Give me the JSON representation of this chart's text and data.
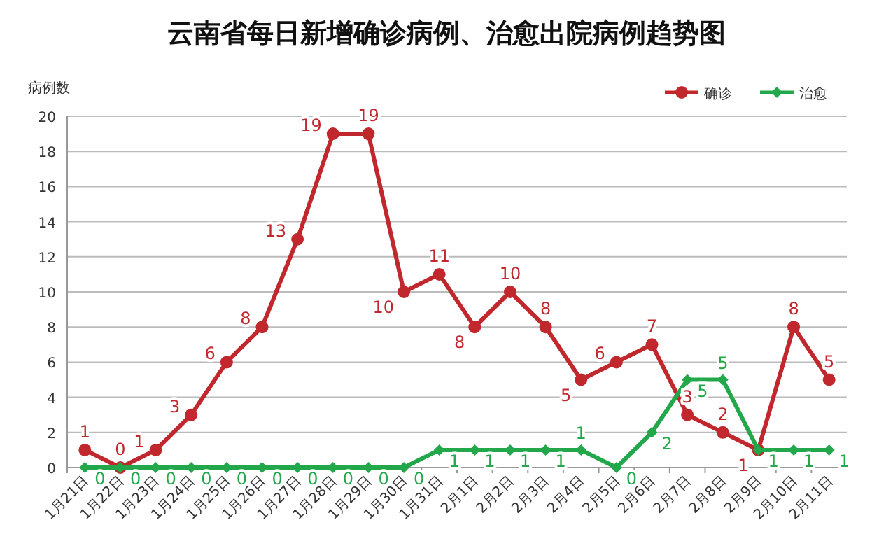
{
  "chart_data": {
    "type": "line",
    "title": "云南省每日新增确诊病例、治愈出院病例趋势图",
    "ylabel": "病例数",
    "categories": [
      "1月21日",
      "1月22日",
      "1月23日",
      "1月24日",
      "1月25日",
      "1月26日",
      "1月27日",
      "1月28日",
      "1月29日",
      "1月30日",
      "1月31日",
      "2月1日",
      "2月2日",
      "2月3日",
      "2月4日",
      "2月5日",
      "2月6日",
      "2月7日",
      "2月8日",
      "2月9日",
      "2月10日",
      "2月11日"
    ],
    "series": [
      {
        "name": "确诊",
        "color": "#c0282d",
        "marker": "circle",
        "values": [
          1,
          0,
          1,
          3,
          6,
          8,
          13,
          19,
          19,
          10,
          11,
          8,
          10,
          8,
          5,
          6,
          7,
          3,
          2,
          1,
          8,
          5
        ]
      },
      {
        "name": "治愈",
        "color": "#22a84a",
        "marker": "diamond",
        "values": [
          0,
          0,
          0,
          0,
          0,
          0,
          0,
          0,
          0,
          0,
          1,
          1,
          1,
          1,
          1,
          0,
          2,
          5,
          5,
          1,
          1,
          1
        ]
      }
    ],
    "ylim": [
      0,
      20
    ],
    "yticks": [
      0,
      2,
      4,
      6,
      8,
      10,
      12,
      14,
      16,
      18,
      20
    ],
    "grid": "y",
    "legend": "top right",
    "data_labels": true
  }
}
